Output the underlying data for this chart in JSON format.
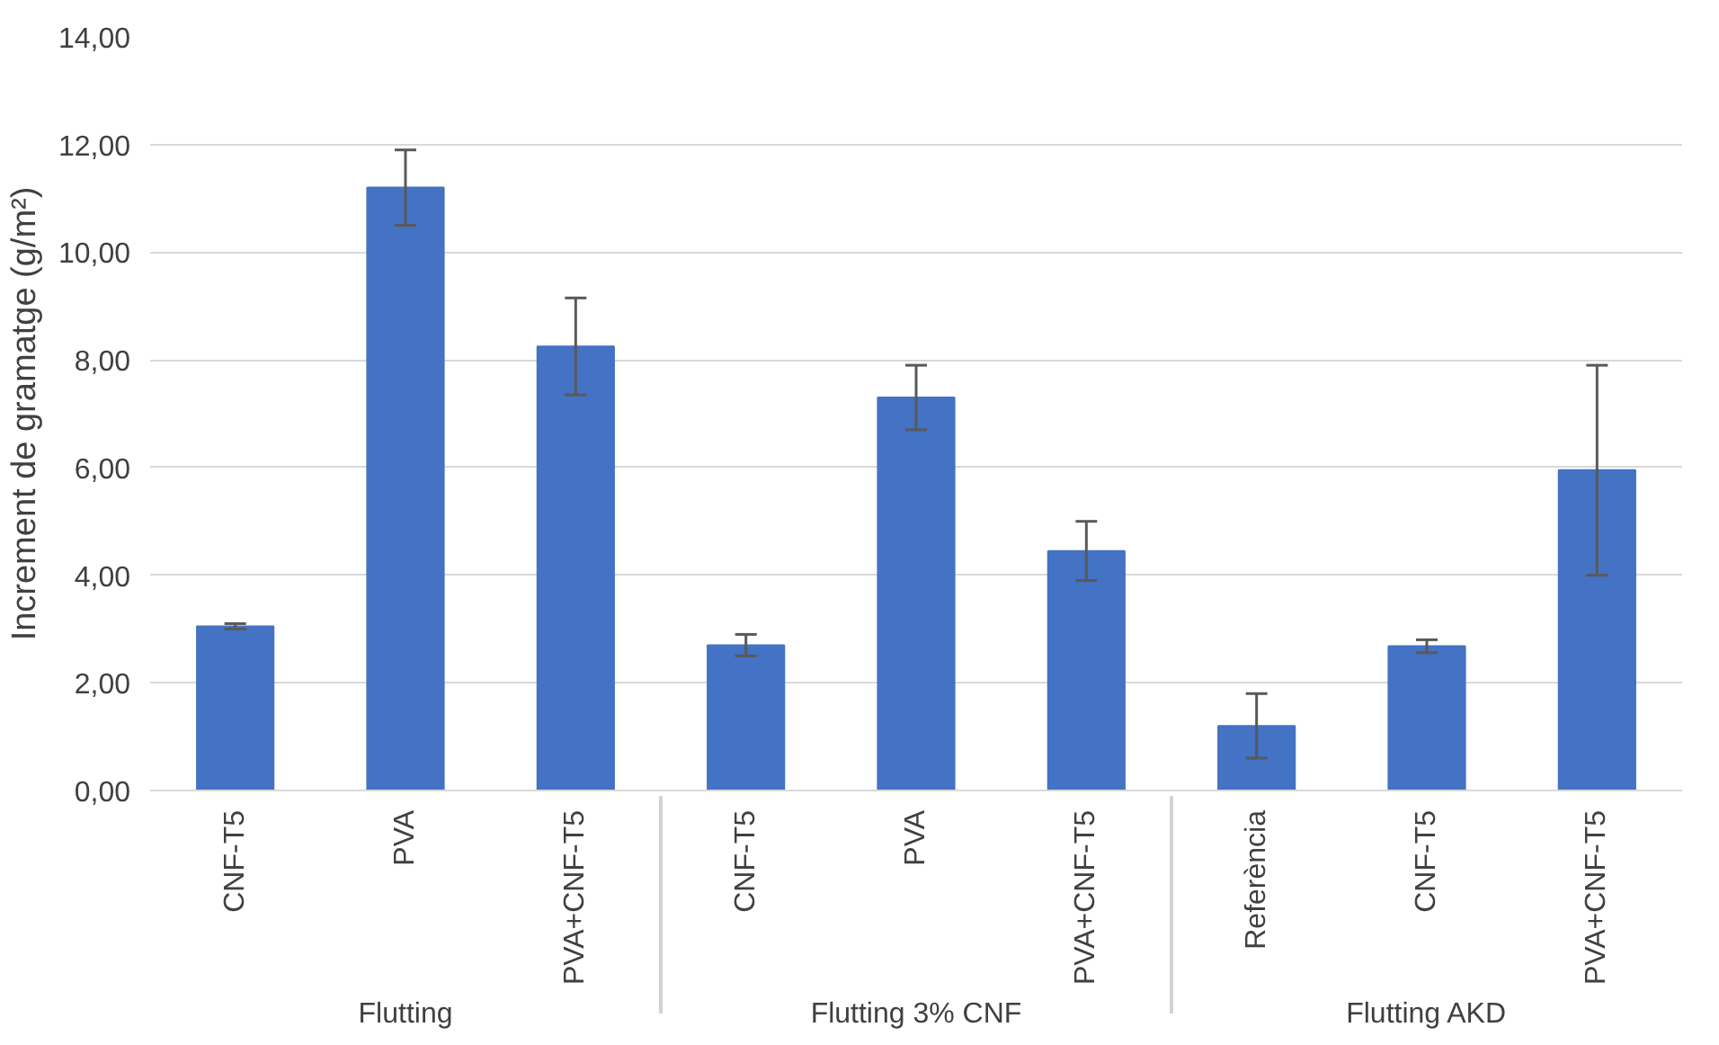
{
  "chart_data": {
    "type": "bar",
    "ylabel": "Increment de gramatge (g/m²)",
    "categories": [
      "CNF-T5",
      "PVA",
      "PVA+CNF-T5",
      "CNF-T5",
      "PVA",
      "PVA+CNF-T5",
      "Referència",
      "CNF-T5",
      "PVA+CNF-T5"
    ],
    "annotations": [
      "Flutting",
      "Flutting 3% CNF",
      "Flutting AKD"
    ],
    "values": [
      3.05,
      11.2,
      8.25,
      2.7,
      7.3,
      4.45,
      1.2,
      2.68,
      5.95
    ],
    "errors": [
      0.05,
      0.7,
      0.9,
      0.2,
      0.6,
      0.55,
      0.6,
      0.12,
      1.95
    ],
    "color": "#4472c4",
    "ylim": [
      0,
      14
    ],
    "yticks": [
      {
        "value": 0,
        "label": "0,00"
      },
      {
        "value": 2,
        "label": "2,00"
      },
      {
        "value": 4,
        "label": "4,00"
      },
      {
        "value": 6,
        "label": "6,00"
      },
      {
        "value": 8,
        "label": "8,00"
      },
      {
        "value": 10,
        "label": "10,00"
      },
      {
        "value": 12,
        "label": "12,00"
      },
      {
        "value": 14,
        "label": "14,00"
      }
    ],
    "grid": "y"
  }
}
